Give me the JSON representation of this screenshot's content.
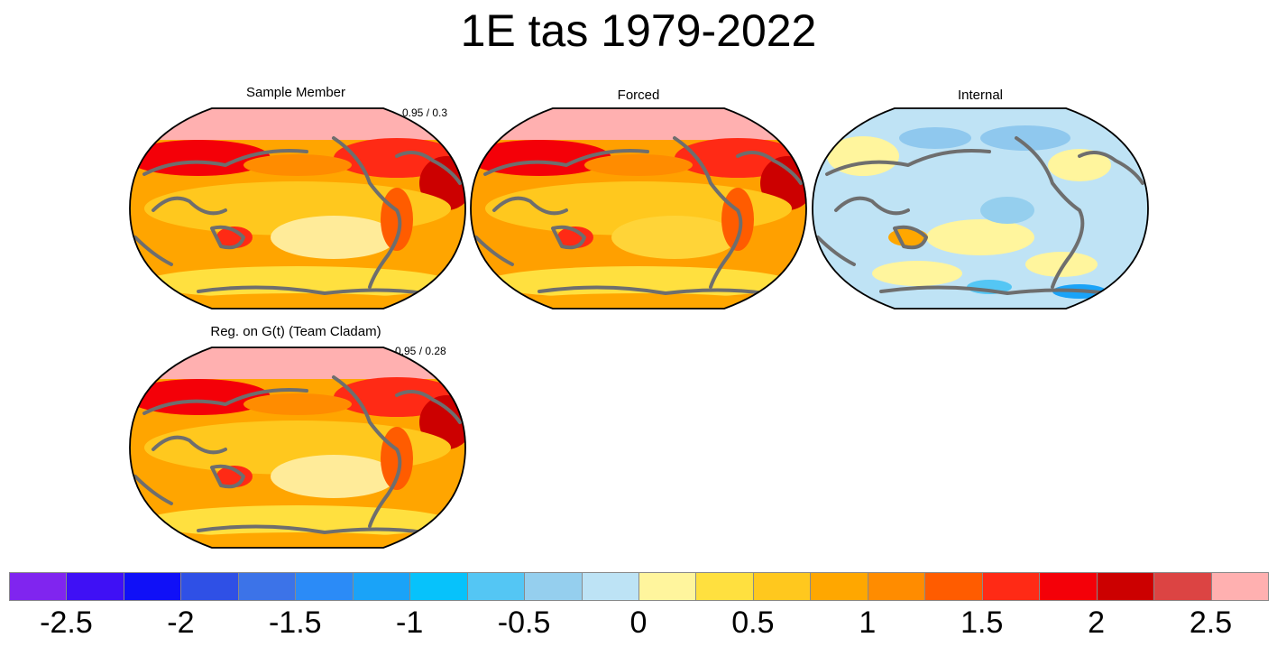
{
  "figure": {
    "title": "1E tas 1979-2022"
  },
  "panels": [
    {
      "id": "sample",
      "title": "Sample Member",
      "stat": "0.95 / 0.3",
      "base_color": "#ffa500",
      "warm_color": "#ff2a15",
      "cold_color": "#ffeb99"
    },
    {
      "id": "forced",
      "title": "Forced",
      "stat": "",
      "base_color": "#ffa000",
      "warm_color": "#ff2a15",
      "cold_color": "#ffd438"
    },
    {
      "id": "internal",
      "title": "Internal",
      "stat": "",
      "base_color": "#bfe3f5",
      "warm_color": "#fff59d",
      "cold_color": "#8fc8ee"
    },
    {
      "id": "regression",
      "title": "Reg. on G(t) (Team Cladam)",
      "stat": "0.95 / 0.28",
      "base_color": "#ffa500",
      "warm_color": "#ff2a15",
      "cold_color": "#ffeb99"
    }
  ],
  "colorbar": {
    "colors": [
      "#8025ef",
      "#3f10f5",
      "#1010f7",
      "#2f50e6",
      "#3c73e8",
      "#2b8bf7",
      "#1aa3f8",
      "#07c2fb",
      "#54c6f4",
      "#95cfee",
      "#bde3f5",
      "#fff59d",
      "#ffe03f",
      "#ffc81e",
      "#ffa700",
      "#ff8c00",
      "#ff5c00",
      "#ff2a15",
      "#f40008",
      "#cc0000",
      "#dc4443",
      "#ffb0b0"
    ],
    "tick_labels": [
      "-2.5",
      "-2",
      "-1.5",
      "-1",
      "-0.5",
      "0",
      "0.5",
      "1",
      "1.5",
      "2",
      "2.5"
    ]
  }
}
